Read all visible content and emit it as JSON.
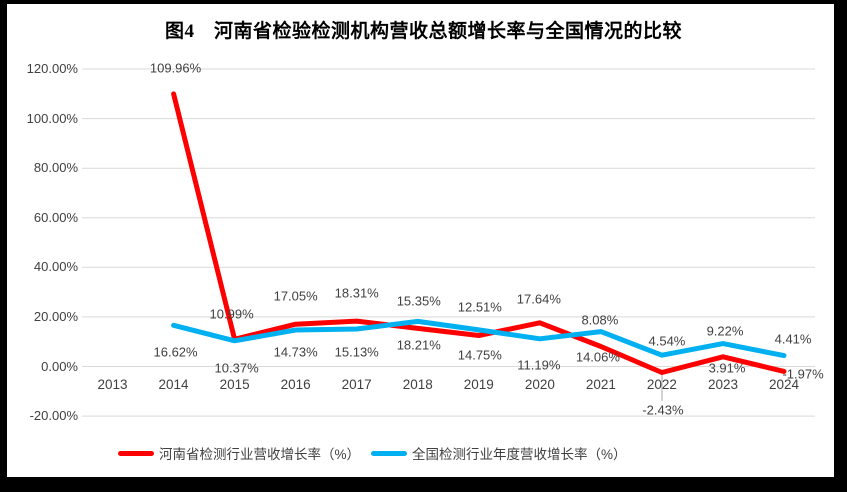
{
  "chart_data": {
    "type": "line",
    "title": "图4　河南省检验检测机构营收总额增长率与全国情况的比较",
    "categories": [
      "2013",
      "2014",
      "2015",
      "2016",
      "2017",
      "2018",
      "2019",
      "2020",
      "2021",
      "2022",
      "2023",
      "2024"
    ],
    "series": [
      {
        "name": "河南省检测行业营收增长率（%）",
        "color": "#FE0000",
        "values": [
          null,
          109.96,
          10.99,
          17.05,
          18.31,
          15.35,
          12.51,
          17.64,
          8.08,
          -2.43,
          3.91,
          -1.97
        ],
        "labels": [
          null,
          "109.96%",
          "10.99%",
          "17.05%",
          "18.31%",
          "15.35%",
          "12.51%",
          "17.64%",
          "8.08%",
          "-2.43%",
          "3.91%",
          "-1.97%"
        ]
      },
      {
        "name": "全国检测行业年度营收增长率（%）",
        "color": "#00B0F0",
        "values": [
          null,
          16.62,
          10.37,
          14.73,
          15.13,
          18.21,
          14.75,
          11.19,
          14.06,
          4.54,
          9.22,
          4.41
        ],
        "labels": [
          null,
          "16.62%",
          "10.37%",
          "14.73%",
          "15.13%",
          "18.21%",
          "14.75%",
          "11.19%",
          "14.06%",
          "4.54%",
          "9.22%",
          "4.41%"
        ]
      }
    ],
    "y_axis": {
      "min": -20,
      "max": 120,
      "step": 20,
      "tick_values": [
        120,
        100,
        80,
        60,
        40,
        20,
        0,
        -20
      ],
      "tick_labels": [
        "120.00%",
        "100.00%",
        "80.00%",
        "60.00%",
        "40.00%",
        "20.00%",
        "0.00%",
        "-20.00%"
      ]
    },
    "x_axis": {
      "tick_labels": [
        "2013",
        "2014",
        "2015",
        "2016",
        "2017",
        "2018",
        "2019",
        "2020",
        "2021",
        "2022",
        "2023",
        "2024"
      ]
    },
    "legend_position": "bottom",
    "grid": true,
    "colors": {
      "gridline": "#D9D9D9",
      "leader_line": "#A6A6A6",
      "text": "#404040",
      "title_text": "#000000",
      "plot_background": "#FFFFFF",
      "frame_border": "#000000"
    }
  }
}
